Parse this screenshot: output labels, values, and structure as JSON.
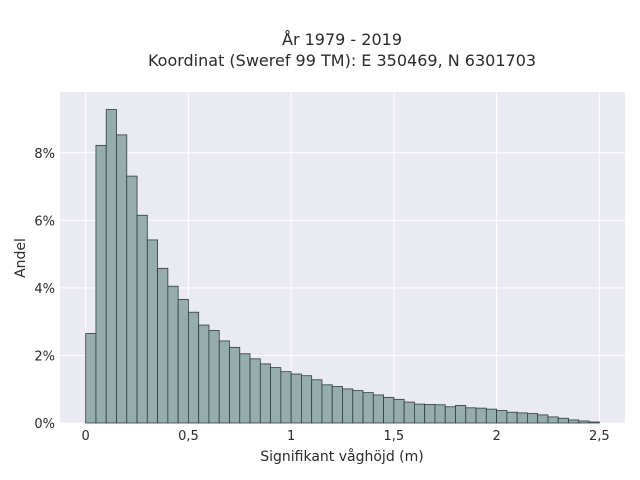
{
  "chart_data": {
    "type": "bar",
    "title_line1": "År 1979 - 2019",
    "title_line2": "Koordinat (Sweref 99 TM): E 350469, N 6301703",
    "xlabel": "Signifikant våghöjd (m)",
    "ylabel": "Andel",
    "bin_width": 0.05,
    "bin_start": 0,
    "values": [
      2.65,
      8.22,
      9.28,
      8.53,
      7.31,
      6.15,
      5.42,
      4.58,
      4.05,
      3.66,
      3.28,
      2.9,
      2.74,
      2.43,
      2.24,
      2.05,
      1.9,
      1.75,
      1.64,
      1.52,
      1.45,
      1.4,
      1.28,
      1.13,
      1.08,
      1.01,
      0.96,
      0.9,
      0.83,
      0.76,
      0.7,
      0.62,
      0.56,
      0.55,
      0.54,
      0.48,
      0.52,
      0.45,
      0.44,
      0.41,
      0.37,
      0.32,
      0.3,
      0.28,
      0.24,
      0.18,
      0.14,
      0.09,
      0.06,
      0.03
    ],
    "xlim": [
      -0.125,
      2.625
    ],
    "ylim": [
      0,
      9.8
    ],
    "xticks": [
      {
        "value": 0,
        "label": "0"
      },
      {
        "value": 0.5,
        "label": "0,5"
      },
      {
        "value": 1,
        "label": "1"
      },
      {
        "value": 1.5,
        "label": "1,5"
      },
      {
        "value": 2,
        "label": "2"
      },
      {
        "value": 2.5,
        "label": "2,5"
      }
    ],
    "yticks": [
      {
        "value": 0,
        "label": "0%"
      },
      {
        "value": 2,
        "label": "2%"
      },
      {
        "value": 4,
        "label": "4%"
      },
      {
        "value": 6,
        "label": "6%"
      },
      {
        "value": 8,
        "label": "8%"
      }
    ],
    "grid": true,
    "colors": {
      "bar_fill": "#95adad",
      "bar_edge": "#2f3d3d",
      "plot_bg": "#eaeaf2"
    }
  }
}
